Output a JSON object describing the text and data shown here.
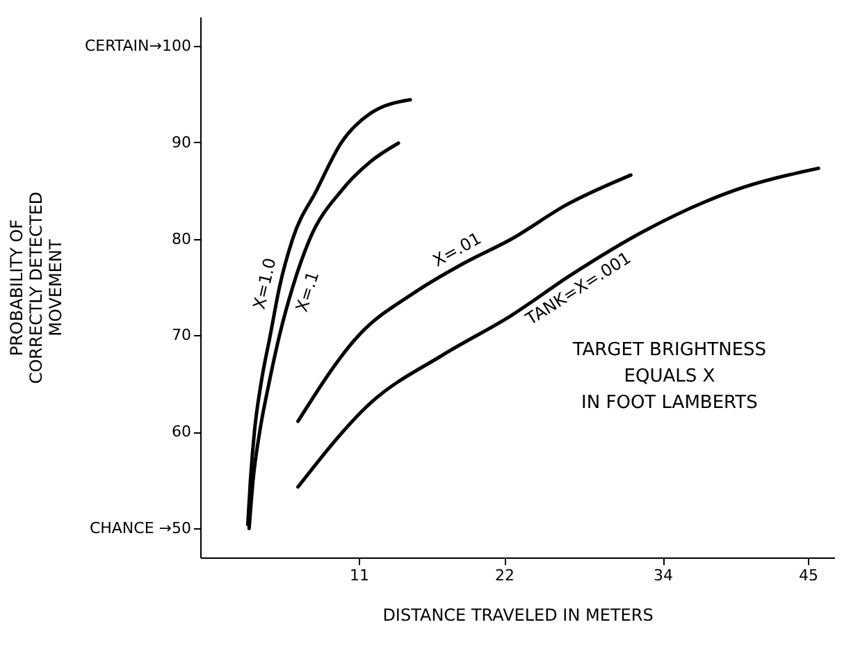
{
  "chart_data": {
    "type": "line",
    "xlabel": "DISTANCE TRAVELED IN METERS",
    "ylabel": "PROBABILITY OF\nCORRECTLY DETECTED\nMOVEMENT",
    "xlim": [
      -1,
      47
    ],
    "xticks": [
      11,
      22,
      34,
      45
    ],
    "ylim": [
      47,
      103
    ],
    "yticks": [
      {
        "value": 50,
        "label": "CHANCE →50"
      },
      60,
      70,
      80,
      90,
      {
        "value": 100,
        "label": "CERTAIN→100"
      }
    ],
    "grid": false,
    "marker": "none",
    "line_style": "solid",
    "annotations": [
      "TARGET BRIGHTNESS\nEQUALS X\nIN FOOT LAMBERTS"
    ],
    "series": [
      {
        "name": "X=1.0",
        "color": "#000000",
        "x": [
          2.6,
          2.8,
          3.1,
          3.6,
          4.3,
          5.0,
          6.0,
          7.8,
          9.7,
          11.9,
          14.9
        ],
        "values": [
          50.4,
          55,
          60,
          65,
          70,
          75,
          80,
          85,
          90,
          93,
          94.4
        ]
      },
      {
        "name": "X=.1",
        "color": "#000000",
        "x": [
          2.7,
          3.0,
          3.5,
          4.2,
          5.0,
          6.0,
          7.3,
          9.7,
          11.9,
          14.0
        ],
        "values": [
          50,
          55,
          60,
          65,
          70,
          75,
          80,
          85,
          88,
          89.9
        ]
      },
      {
        "name": "X=.01",
        "color": "#000000",
        "x": [
          6.4,
          11,
          15.3,
          19,
          22.6,
          26.7,
          31.6
        ],
        "values": [
          61.1,
          70,
          74.5,
          77.5,
          80,
          83.5,
          86.6
        ]
      },
      {
        "name": "TANK=X=.001",
        "color": "#000000",
        "x": [
          6.4,
          11.9,
          17.4,
          22.6,
          27,
          32.6,
          39.4,
          45.8
        ],
        "values": [
          54.3,
          63,
          68,
          72.1,
          76.2,
          80.8,
          85,
          87.3
        ]
      }
    ]
  }
}
